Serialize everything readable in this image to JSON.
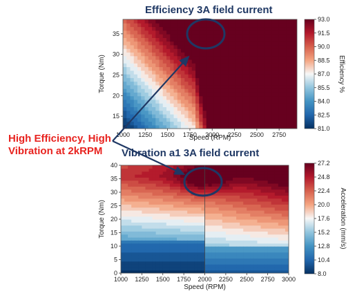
{
  "chart_data": [
    {
      "type": "heatmap",
      "title": "Efficiency 3A field current",
      "xlabel": "Speed (RPM)",
      "ylabel": "Torque (Nm)",
      "xlim": [
        1000,
        2950
      ],
      "ylim": [
        12,
        38.5
      ],
      "xticks": [
        "1000",
        "1250",
        "1500",
        "1750",
        "2000",
        "2250",
        "2500",
        "2750"
      ],
      "yticks": [
        "15",
        "20",
        "25",
        "30",
        "35"
      ],
      "colorbar": {
        "label": "Efficiency %",
        "min": 81.0,
        "max": 93.0,
        "ticks": [
          "93.0",
          "91.5",
          "90.0",
          "88.5",
          "87.0",
          "85.5",
          "84.0",
          "82.5",
          "81.0"
        ],
        "colormap": "RdBu_r"
      },
      "regions": [
        {
          "speed_range": [
            2000,
            2950
          ],
          "efficiency": 93.0
        },
        {
          "point": [
            1000,
            12
          ],
          "efficiency": 81.0
        },
        {
          "point": [
            1500,
            24
          ],
          "efficiency": 87.0
        },
        {
          "point": [
            1000,
            38
          ],
          "efficiency": 90.5
        }
      ]
    },
    {
      "type": "heatmap",
      "title": "Vibration a1 3A field current",
      "xlabel": "Speed (RPM)",
      "ylabel": "Torque (Nm)",
      "xlim": [
        1000,
        3000
      ],
      "ylim": [
        0,
        40
      ],
      "xticks": [
        "1000",
        "1250",
        "1500",
        "1750",
        "2000",
        "2250",
        "2500",
        "2750",
        "3000"
      ],
      "yticks": [
        "0",
        "5",
        "10",
        "15",
        "20",
        "25",
        "30",
        "35",
        "40"
      ],
      "colorbar": {
        "label": "Acceleration (mm/s)",
        "min": 8.0,
        "max": 27.2,
        "ticks": [
          "27.2",
          "24.8",
          "22.4",
          "20.0",
          "17.6",
          "15.2",
          "12.8",
          "10.4",
          "8.0"
        ],
        "colormap": "RdBu_r"
      },
      "regions": [
        {
          "point": [
            2000,
            35
          ],
          "acceleration": 27.2
        },
        {
          "point": [
            1500,
            30
          ],
          "acceleration": 21.0
        },
        {
          "point": [
            1400,
            18
          ],
          "acceleration": 16.0
        },
        {
          "point": [
            1500,
            5
          ],
          "acceleration": 9.0
        },
        {
          "point": [
            2500,
            30
          ],
          "acceleration": 24.5
        },
        {
          "point": [
            2500,
            15
          ],
          "acceleration": 21.5
        },
        {
          "point": [
            2500,
            5
          ],
          "acceleration": 13.0
        }
      ]
    }
  ],
  "annotation": {
    "line1": "High Efficiency, High",
    "line2": "Vibration at 2kRPM"
  },
  "colors": {
    "annotation": "#e8231f",
    "arrow": "#1f3864",
    "circle": "#1f3864",
    "title": "#1f3864"
  }
}
